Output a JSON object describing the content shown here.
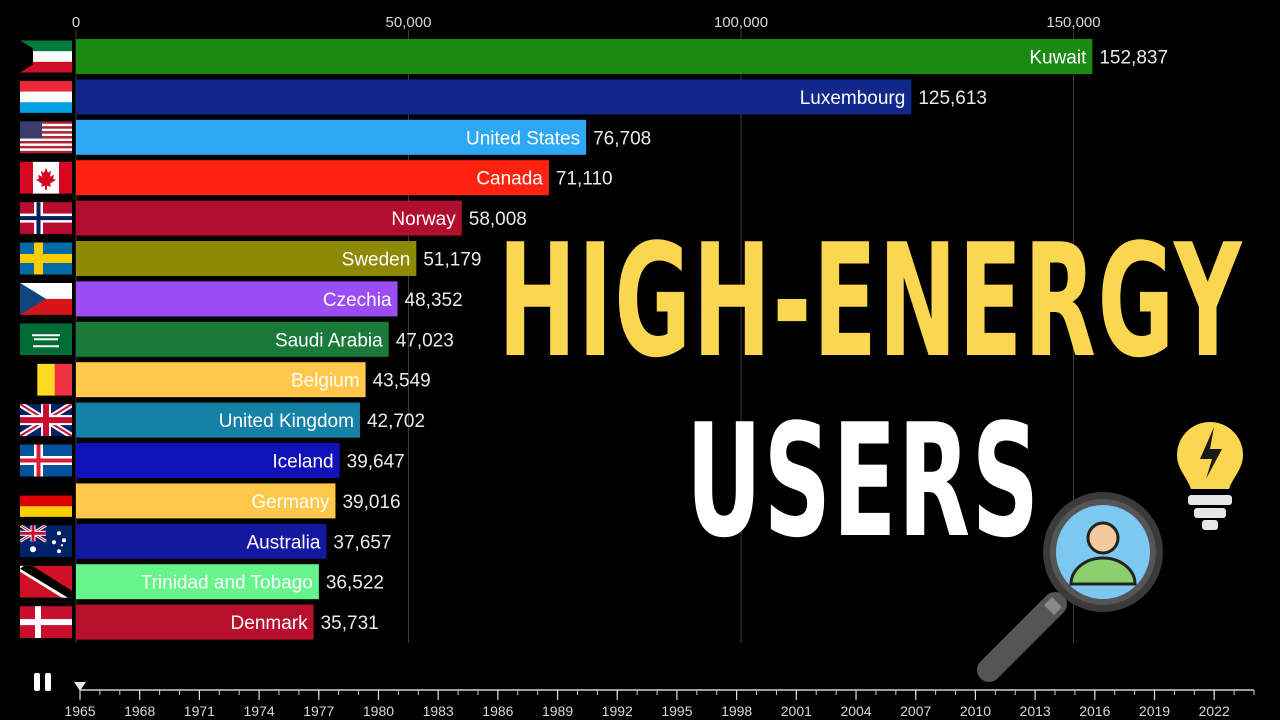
{
  "chart_data": {
    "type": "bar",
    "orientation": "horizontal",
    "title": "",
    "xlim": [
      0,
      170000
    ],
    "x_ticks": [
      0,
      50000,
      100000,
      150000
    ],
    "x_tick_labels": [
      "0",
      "50,000",
      "100,000",
      "150,000"
    ],
    "categories": [
      "Kuwait",
      "Luxembourg",
      "United States",
      "Canada",
      "Norway",
      "Sweden",
      "Czechia",
      "Saudi Arabia",
      "Belgium",
      "United Kingdom",
      "Iceland",
      "Germany",
      "Australia",
      "Trinidad and Tobago",
      "Denmark"
    ],
    "values": [
      152837,
      125613,
      76708,
      71110,
      58008,
      51179,
      48352,
      47023,
      43549,
      42702,
      39647,
      39016,
      37657,
      36522,
      35731
    ],
    "value_labels": [
      "152,837",
      "125,613",
      "76,708",
      "71,110",
      "58,008",
      "51,179",
      "48,352",
      "47,023",
      "43,549",
      "42,702",
      "39,647",
      "39,016",
      "37,657",
      "36,522",
      "35,731"
    ],
    "bar_colors": [
      "#1a8a12",
      "#12278a",
      "#2ea8f5",
      "#ff2211",
      "#b10d2e",
      "#8f8a05",
      "#9c4cf5",
      "#1a7a3a",
      "#ffc84a",
      "#1581a6",
      "#1111b8",
      "#ffc84a",
      "#1418a0",
      "#66f58a",
      "#b8102c"
    ],
    "flags": [
      "kuwait-flag-icon",
      "luxembourg-flag-icon",
      "united-states-flag-icon",
      "canada-flag-icon",
      "norway-flag-icon",
      "sweden-flag-icon",
      "czechia-flag-icon",
      "saudi-arabia-flag-icon",
      "belgium-flag-icon",
      "united-kingdom-flag-icon",
      "iceland-flag-icon",
      "germany-flag-icon",
      "australia-flag-icon",
      "trinidad-and-tobago-flag-icon",
      "denmark-flag-icon"
    ],
    "timeline": {
      "start_year": 1965,
      "end_year": 2024,
      "current_year": 1965,
      "tick_labels": [
        "1965",
        "1968",
        "1971",
        "1974",
        "1977",
        "1980",
        "1983",
        "1986",
        "1989",
        "1992",
        "1995",
        "1998",
        "2001",
        "2004",
        "2007",
        "2010",
        "2013",
        "2016",
        "2019",
        "2022"
      ]
    }
  },
  "overlay": {
    "headline_line1": "HIGH-ENERGY",
    "headline_line2": "USERS",
    "headline_color": "#fbd751",
    "icons": [
      "lightbulb-bolt-icon",
      "magnifier-user-icon"
    ]
  },
  "controls": {
    "play_state_icon": "pause-icon"
  }
}
